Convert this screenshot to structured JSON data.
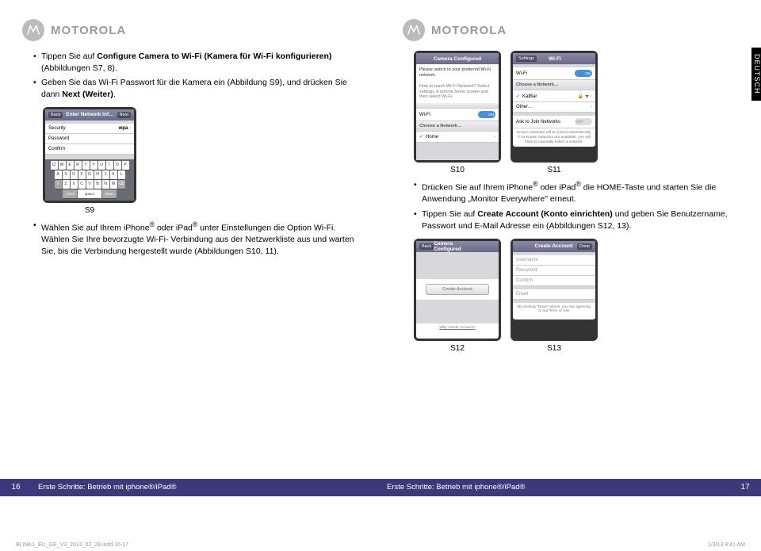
{
  "brand": "MOTOROLA",
  "sideTab": "DEUTSCH",
  "left": {
    "bullets": [
      {
        "pre": "Tippen Sie auf ",
        "b": "Configure Camera to Wi-Fi (Kamera für Wi-Fi konfigurieren)",
        "post": " (Abbildungen S7, 8)."
      },
      {
        "pre": "Geben Sie das Wi-Fi Passwort für die Kamera ein (Abbildung S9), und drücken Sie dann ",
        "b": "Next (Weiter)",
        "post": "."
      }
    ],
    "s9Label": "S9",
    "bullets2": [
      {
        "pre": "Wählen Sie auf Ihrem iPhone",
        "b": "®",
        "post": " oder iPad",
        "b2": "®",
        "post2": " unter Einstellungen die Option Wi-Fi. Wählen Sie Ihre bevorzugte Wi-Fi- Verbindung aus der Netzwerkliste aus und warten Sie, bis die Verbindung hergestellt wurde (Abbildungen S10, 11)."
      }
    ],
    "s9": {
      "back": "Back",
      "title": "Enter Network Inf…",
      "next": "Next",
      "security": "Security",
      "securityVal": "wpa",
      "password": "Password",
      "confirm": "Confirm",
      "keys1": [
        "Q",
        "W",
        "E",
        "R",
        "T",
        "Y",
        "U",
        "I",
        "O",
        "P"
      ],
      "keys2": [
        "A",
        "S",
        "D",
        "F",
        "G",
        "H",
        "J",
        "K",
        "L"
      ],
      "keys3": [
        "Z",
        "X",
        "C",
        "V",
        "B",
        "N",
        "M"
      ],
      "sym": ".?123",
      "space": "space",
      "return": "return"
    },
    "pageNum": "16",
    "footerText": "Erste Schritte: Betrieb mit iphone®/iPad®"
  },
  "right": {
    "s10": {
      "title": "Camera Configured",
      "text": "Please switch to your preferred Wi-Fi network.",
      "hint": "How to reach Wi-Fi Network? Select settings in iphone home screen and then select Wi-Fi.",
      "wifi": "Wi-Fi",
      "choose": "Choose a Network…",
      "home": "Home"
    },
    "s11": {
      "settings": "Settings",
      "title": "Wi-Fi",
      "wifi": "Wi-Fi",
      "on": "ON",
      "choose": "Choose a Network…",
      "net": "KatBar",
      "other": "Other…",
      "ask": "Ask to Join Networks",
      "off": "OFF",
      "note": "Known networks will be joined automatically. If no known networks are available, you will have to manually select a network."
    },
    "labels10_11": {
      "a": "S10",
      "b": "S11"
    },
    "bullets": [
      {
        "pre": "Drücken Sie auf Ihrem iPhone",
        "b": "®",
        "post": " oder iPad",
        "b2": "®",
        "post2": " die HOME-Taste und starten Sie die Anwendung „Monitor Everywhere\" erneut."
      },
      {
        "pre": "Tippen Sie auf ",
        "b": "Create Account (Konto einrichten)",
        "post": " und geben Sie Benutzername, Passwort und E-Mail Adresse ein (Abbildungen S12, 13)."
      }
    ],
    "s12": {
      "back": "Back",
      "title": "Camera Configured",
      "createBtn": "Create Account",
      "why": "Why create Account?"
    },
    "s13": {
      "title": "Create Account",
      "done": "Done",
      "username": "Username",
      "password": "Password",
      "confirm": "Confirm",
      "email": "Email",
      "terms": "By clicking \"Done\" above, you are agreeing to our Term of Use"
    },
    "labels12_13": {
      "a": "S12",
      "b": "S13"
    },
    "pageNum": "17",
    "footerText": "Erste Schritte: Betrieb mit iphone®/iPad®"
  },
  "docMeta": {
    "file": "BLINK1_EU_GE_V3_2013_02_28.indd   16-17",
    "date": "1/3/13   8:41 AM"
  }
}
